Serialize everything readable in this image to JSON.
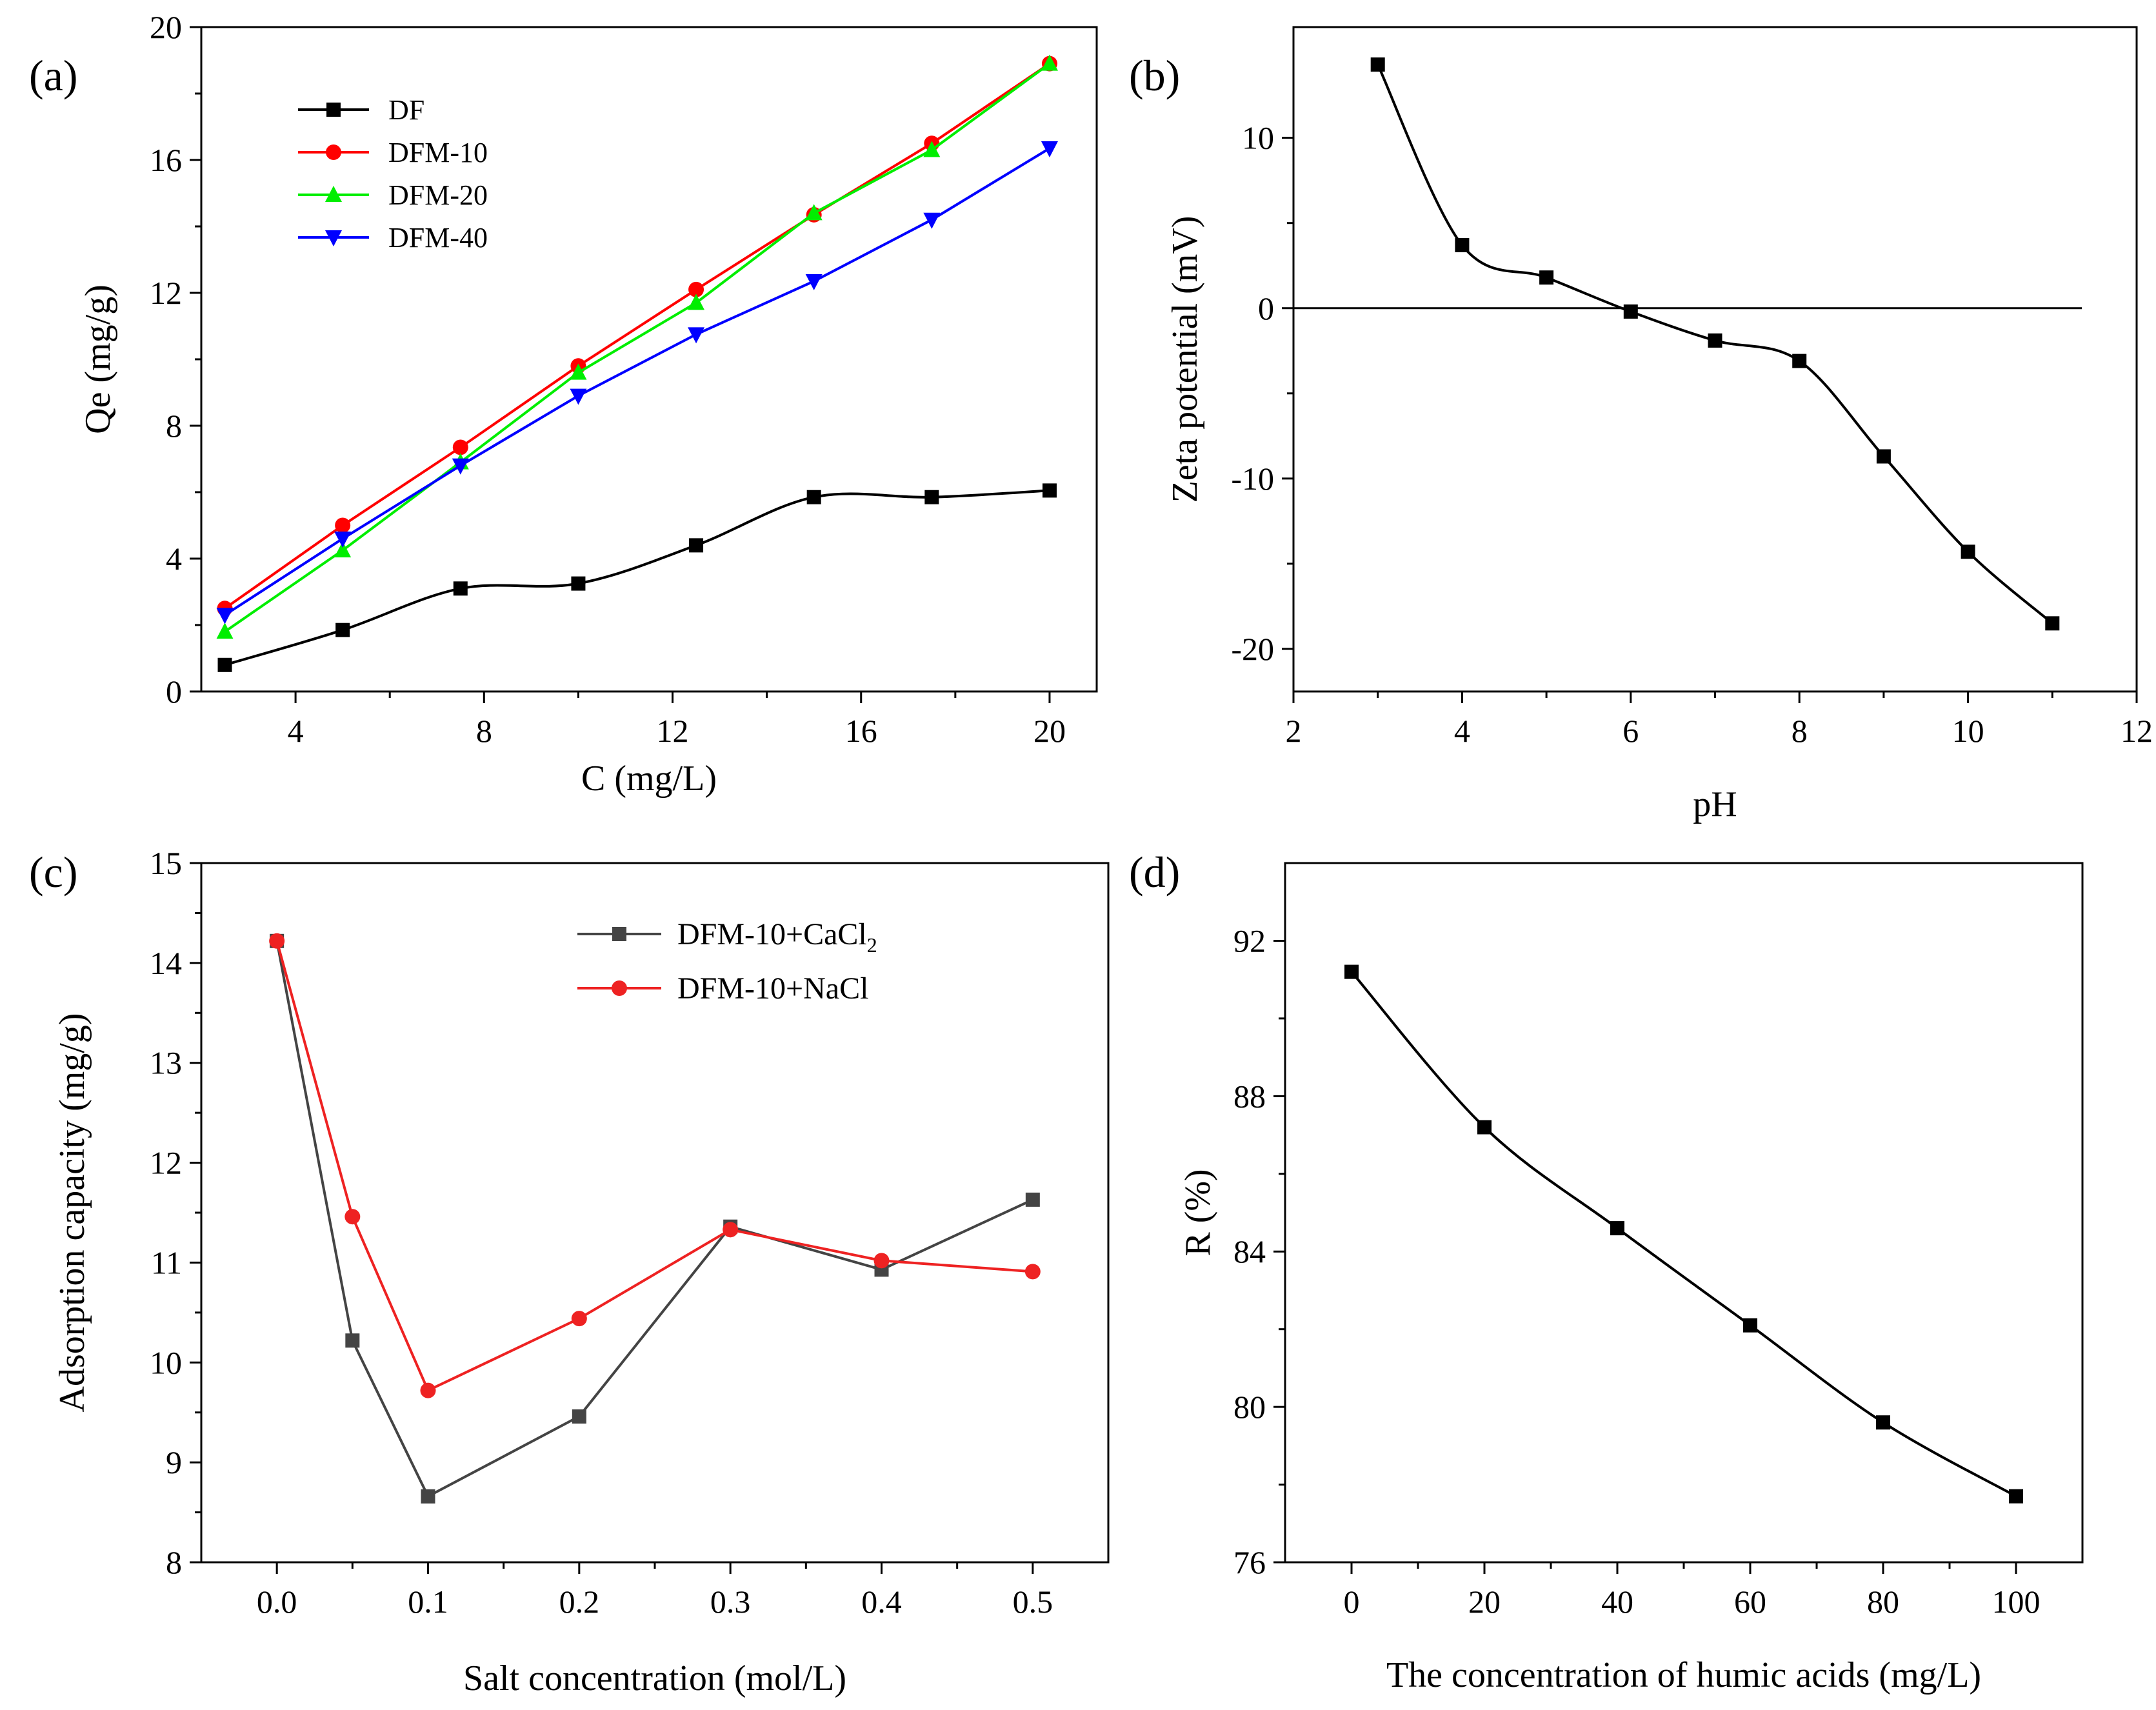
{
  "chart_data": [
    {
      "id": "a",
      "type": "line",
      "panel_label": "(a)",
      "xlabel": "C (mg/L)",
      "ylabel": "Qe (mg/g)",
      "xlim": [
        2,
        21
      ],
      "ylim": [
        0,
        20
      ],
      "xticks": [
        4,
        8,
        12,
        16,
        20
      ],
      "yticks": [
        0,
        4,
        8,
        12,
        16,
        20
      ],
      "grid": false,
      "legend": "top-left",
      "x": [
        2.5,
        5,
        7.5,
        10,
        12.5,
        15,
        17.5,
        20
      ],
      "series": [
        {
          "name": "DF",
          "color": "#000000",
          "marker": "square",
          "smooth": true,
          "values": [
            0.8,
            1.85,
            3.1,
            3.25,
            4.4,
            5.85,
            5.85,
            6.05
          ]
        },
        {
          "name": "DFM-10",
          "color": "#ff0000",
          "marker": "circle",
          "smooth": false,
          "values": [
            2.5,
            5.0,
            7.35,
            9.8,
            12.1,
            14.35,
            16.5,
            18.9
          ]
        },
        {
          "name": "DFM-20",
          "color": "#00ee00",
          "marker": "triangle-up",
          "smooth": false,
          "values": [
            1.8,
            4.25,
            6.9,
            9.6,
            11.7,
            14.4,
            16.3,
            18.9
          ]
        },
        {
          "name": "DFM-40",
          "color": "#0000ff",
          "marker": "triangle-down",
          "smooth": false,
          "values": [
            2.3,
            4.6,
            6.8,
            8.9,
            10.75,
            12.35,
            14.2,
            16.35
          ]
        }
      ]
    },
    {
      "id": "b",
      "type": "line",
      "panel_label": "(b)",
      "xlabel": "pH",
      "ylabel": "Zeta potential (mV)",
      "xlim": [
        2,
        12
      ],
      "ylim": [
        -22.5,
        16.5
      ],
      "xticks": [
        2,
        4,
        6,
        8,
        10,
        12
      ],
      "yticks": [
        -20,
        -10,
        0,
        10
      ],
      "grid": false,
      "legend": "none",
      "reference_line_y": 0,
      "reference_line_xrange": [
        2,
        11.35
      ],
      "x": [
        3,
        4,
        5,
        6,
        7,
        8,
        9,
        10,
        11
      ],
      "series": [
        {
          "name": "Zeta potential",
          "color": "#000000",
          "marker": "square",
          "smooth": true,
          "values": [
            14.3,
            3.7,
            1.8,
            -0.2,
            -1.9,
            -3.1,
            -8.7,
            -14.3,
            -18.5
          ]
        }
      ]
    },
    {
      "id": "c",
      "type": "line",
      "panel_label": "(c)",
      "xlabel": "Salt concentration (mol/L)",
      "ylabel": "Adsorption capacity (mg/g)",
      "xlim": [
        -0.05,
        0.55
      ],
      "ylim": [
        8,
        15
      ],
      "xticks": [
        0.0,
        0.1,
        0.2,
        0.3,
        0.4,
        0.5
      ],
      "xtick_labels": [
        "0.0",
        "0.1",
        "0.2",
        "0.3",
        "0.4",
        "0.5"
      ],
      "yticks": [
        8,
        9,
        10,
        11,
        12,
        13,
        14,
        15
      ],
      "grid": false,
      "legend": "top-right",
      "x": [
        0,
        0.05,
        0.1,
        0.2,
        0.3,
        0.4,
        0.5
      ],
      "series": [
        {
          "name": "DFM-10+CaCl",
          "name_sub": "2",
          "color": "#444444",
          "marker": "square",
          "smooth": false,
          "values": [
            14.22,
            10.22,
            8.66,
            9.46,
            11.36,
            10.93,
            11.63
          ]
        },
        {
          "name": "DFM-10+NaCl",
          "name_sub": "",
          "color": "#ee2222",
          "marker": "circle",
          "smooth": false,
          "values": [
            14.22,
            11.46,
            9.72,
            10.44,
            11.33,
            11.02,
            10.91
          ]
        }
      ]
    },
    {
      "id": "d",
      "type": "line",
      "panel_label": "(d)",
      "xlabel": "The concentration of humic acids (mg/L)",
      "ylabel": "R (%)",
      "xlim": [
        -10,
        110
      ],
      "ylim": [
        76,
        94
      ],
      "xticks": [
        0,
        20,
        40,
        60,
        80,
        100
      ],
      "yticks": [
        76,
        80,
        84,
        88,
        92
      ],
      "grid": false,
      "legend": "none",
      "x": [
        0,
        20,
        40,
        60,
        80,
        100
      ],
      "series": [
        {
          "name": "R",
          "color": "#000000",
          "marker": "square",
          "smooth": true,
          "values": [
            91.2,
            87.2,
            84.6,
            82.1,
            79.6,
            77.7
          ]
        }
      ]
    }
  ]
}
